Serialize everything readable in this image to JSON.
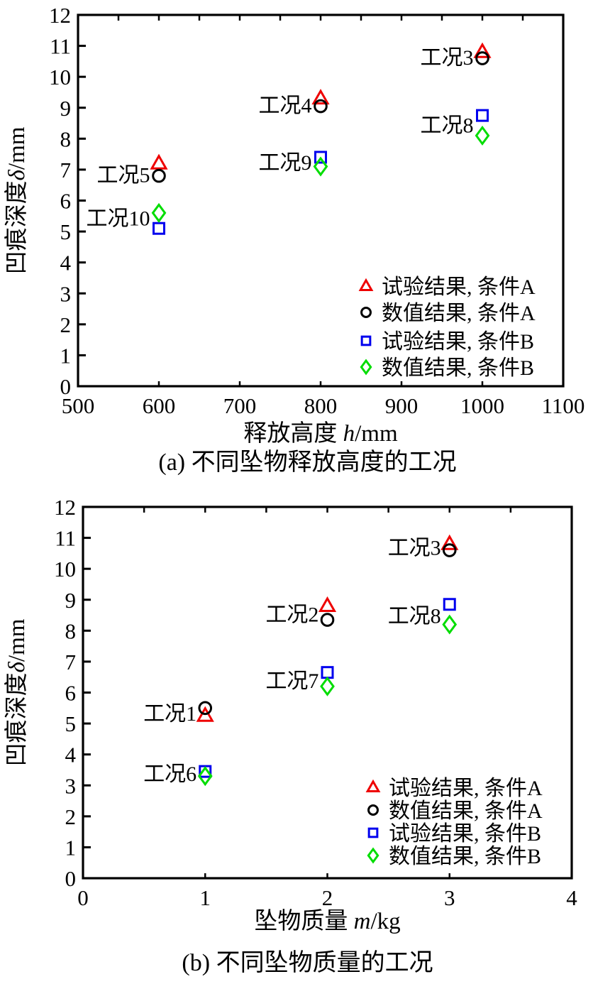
{
  "page": {
    "background_color": "#ffffff",
    "axis_color": "#000000"
  },
  "chart_data": [
    {
      "id": "a",
      "type": "scatter",
      "title": "(a) 不同坠物释放高度的工况",
      "xlabel": {
        "prefix": "释放高度 ",
        "var": "h",
        "unit": "/mm"
      },
      "ylabel": {
        "prefix": "凹痕深度",
        "var": "δ",
        "unit": "/mm"
      },
      "xlim": [
        500,
        1100
      ],
      "ylim": [
        0,
        12
      ],
      "xticks": [
        500,
        600,
        700,
        800,
        900,
        1000,
        1100
      ],
      "yticks": [
        0,
        1,
        2,
        3,
        4,
        5,
        6,
        7,
        8,
        9,
        10,
        11,
        12
      ],
      "top_tick_step": 50,
      "grid": false,
      "legend_position": "lower right",
      "series": [
        {
          "name": "试验结果, 条件A",
          "marker": "triangle",
          "color": "#ee0000",
          "points": [
            [
              600,
              7.2
            ],
            [
              800,
              9.3
            ],
            [
              1000,
              10.8
            ]
          ]
        },
        {
          "name": "数值结果, 条件A",
          "marker": "circle",
          "color": "#000000",
          "points": [
            [
              600,
              6.8
            ],
            [
              800,
              9.05
            ],
            [
              1000,
              10.6
            ]
          ]
        },
        {
          "name": "试验结果, 条件B",
          "marker": "square",
          "color": "#0000ee",
          "points": [
            [
              600,
              5.1
            ],
            [
              800,
              7.4
            ],
            [
              1000,
              8.75
            ]
          ]
        },
        {
          "name": "数值结果, 条件B",
          "marker": "diamond",
          "color": "#00dd00",
          "points": [
            [
              600,
              5.6
            ],
            [
              800,
              7.1
            ],
            [
              1000,
              8.1
            ]
          ]
        }
      ],
      "annotations": [
        {
          "text": "工况5",
          "x": 589,
          "y": 6.85
        },
        {
          "text": "工况10",
          "x": 589,
          "y": 5.45
        },
        {
          "text": "工况4",
          "x": 789,
          "y": 9.1
        },
        {
          "text": "工况9",
          "x": 789,
          "y": 7.25
        },
        {
          "text": "工况3",
          "x": 989,
          "y": 10.65
        },
        {
          "text": "工况8",
          "x": 989,
          "y": 8.45
        }
      ]
    },
    {
      "id": "b",
      "type": "scatter",
      "title": "(b) 不同坠物质量的工况",
      "xlabel": {
        "prefix": "坠物质量 ",
        "var": "m",
        "unit": "/kg"
      },
      "ylabel": {
        "prefix": "凹痕深度",
        "var": "δ",
        "unit": "/mm"
      },
      "xlim": [
        0,
        4
      ],
      "ylim": [
        0,
        12
      ],
      "xticks": [
        0,
        1,
        2,
        3,
        4
      ],
      "yticks": [
        0,
        1,
        2,
        3,
        4,
        5,
        6,
        7,
        8,
        9,
        10,
        11,
        12
      ],
      "top_tick_step": 0.5,
      "grid": false,
      "legend_position": "lower right",
      "series": [
        {
          "name": "试验结果, 条件A",
          "marker": "triangle",
          "color": "#ee0000",
          "points": [
            [
              1,
              5.25
            ],
            [
              2,
              8.8
            ],
            [
              3,
              10.8
            ]
          ]
        },
        {
          "name": "数值结果, 条件A",
          "marker": "circle",
          "color": "#000000",
          "points": [
            [
              1,
              5.5
            ],
            [
              2,
              8.35
            ],
            [
              3,
              10.6
            ]
          ]
        },
        {
          "name": "试验结果, 条件B",
          "marker": "square",
          "color": "#0000ee",
          "points": [
            [
              1,
              3.45
            ],
            [
              2,
              6.65
            ],
            [
              3,
              8.85
            ]
          ]
        },
        {
          "name": "数值结果, 条件B",
          "marker": "diamond",
          "color": "#00dd00",
          "points": [
            [
              1,
              3.3
            ],
            [
              2,
              6.2
            ],
            [
              3,
              8.2
            ]
          ]
        }
      ],
      "annotations": [
        {
          "text": "工况1",
          "x": 0.93,
          "y": 5.35
        },
        {
          "text": "工况6",
          "x": 0.93,
          "y": 3.4
        },
        {
          "text": "工况2",
          "x": 1.93,
          "y": 8.55
        },
        {
          "text": "工况7",
          "x": 1.93,
          "y": 6.4
        },
        {
          "text": "工况3",
          "x": 2.93,
          "y": 10.7
        },
        {
          "text": "工况8",
          "x": 2.93,
          "y": 8.5
        }
      ]
    }
  ]
}
